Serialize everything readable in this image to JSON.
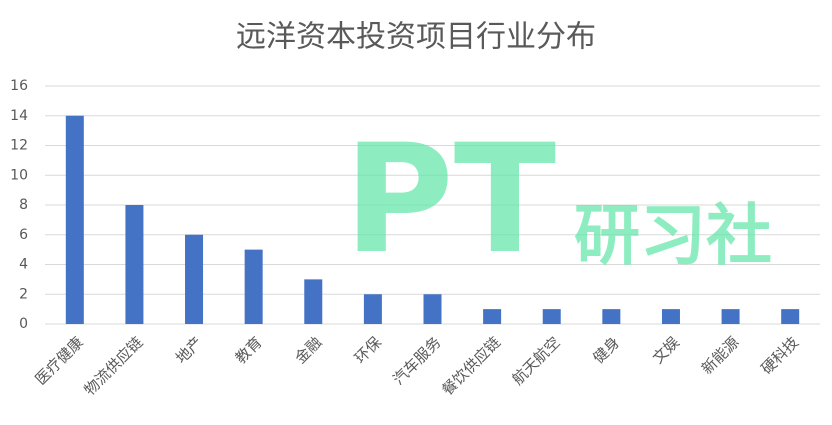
{
  "chart_data": {
    "type": "bar",
    "title": "远洋资本投资项目行业分布",
    "categories": [
      "医疗健康",
      "物流供应链",
      "地产",
      "教育",
      "金融",
      "环保",
      "汽车服务",
      "餐饮供应链",
      "航天航空",
      "健身",
      "文娱",
      "新能源",
      "硬科技"
    ],
    "values": [
      14,
      8,
      6,
      5,
      3,
      2,
      2,
      1,
      1,
      1,
      1,
      1,
      1
    ],
    "color": "#4472c4",
    "ylim": [
      0,
      16
    ],
    "yticks": [
      0,
      2,
      4,
      6,
      8,
      10,
      12,
      14,
      16
    ],
    "grid": true,
    "watermark": {
      "main": "PT",
      "sub": "研习社"
    }
  }
}
